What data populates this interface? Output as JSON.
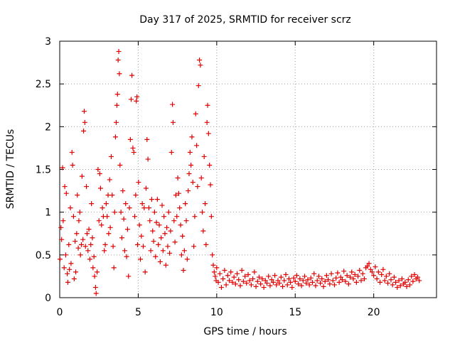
{
  "chart_data": {
    "type": "scatter",
    "title": "Day 317 of 2025, SRMTID for receiver scrz",
    "xlabel": "GPS time / hours",
    "ylabel": "SRMTID / TECUs",
    "xlim": [
      0,
      24
    ],
    "ylim": [
      0,
      3
    ],
    "x_ticks": [
      0,
      5,
      10,
      15,
      20
    ],
    "x_tick_labels": [
      "0",
      "5",
      "10",
      "15",
      "20"
    ],
    "y_ticks": [
      0,
      0.5,
      1,
      1.5,
      2,
      2.5,
      3
    ],
    "y_tick_labels": [
      "0",
      "0.5",
      "1",
      "1.5",
      "2",
      "2.5",
      "3"
    ],
    "grid": true,
    "marker": "+",
    "series": [
      {
        "name": "SRMTID",
        "color": "#e00000",
        "points": [
          [
            0.02,
            0.45
          ],
          [
            0.08,
            0.82
          ],
          [
            0.12,
            0.68
          ],
          [
            0.18,
            1.52
          ],
          [
            0.22,
            0.9
          ],
          [
            0.28,
            0.35
          ],
          [
            0.32,
            1.3
          ],
          [
            0.38,
            0.5
          ],
          [
            0.42,
            1.22
          ],
          [
            0.48,
            0.28
          ],
          [
            0.52,
            0.18
          ],
          [
            0.58,
            0.62
          ],
          [
            0.62,
            0.33
          ],
          [
            0.68,
            1.05
          ],
          [
            0.72,
            0.4
          ],
          [
            0.78,
            1.7
          ],
          [
            0.82,
            1.55
          ],
          [
            0.88,
            0.95
          ],
          [
            0.92,
            0.22
          ],
          [
            0.98,
            0.66
          ],
          [
            1.02,
            0.3
          ],
          [
            1.08,
            0.75
          ],
          [
            1.12,
            1.2
          ],
          [
            1.18,
            0.58
          ],
          [
            1.22,
            0.9
          ],
          [
            1.28,
            1.0
          ],
          [
            1.32,
            0.5
          ],
          [
            1.38,
            0.62
          ],
          [
            1.42,
            1.42
          ],
          [
            1.48,
            0.68
          ],
          [
            1.52,
            1.95
          ],
          [
            1.56,
            2.18
          ],
          [
            1.6,
            2.05
          ],
          [
            1.64,
            0.6
          ],
          [
            1.7,
            1.3
          ],
          [
            1.74,
            0.75
          ],
          [
            1.8,
            0.55
          ],
          [
            1.86,
            0.8
          ],
          [
            1.92,
            0.45
          ],
          [
            1.98,
            0.62
          ],
          [
            2.02,
            1.1
          ],
          [
            2.08,
            0.7
          ],
          [
            2.12,
            0.35
          ],
          [
            2.18,
            0.48
          ],
          [
            2.22,
            0.25
          ],
          [
            2.28,
            0.12
          ],
          [
            2.32,
            0.05
          ],
          [
            2.38,
            0.3
          ],
          [
            2.44,
            1.5
          ],
          [
            2.5,
            0.9
          ],
          [
            2.55,
            1.45
          ],
          [
            2.6,
            1.28
          ],
          [
            2.66,
            0.85
          ],
          [
            2.72,
            1.05
          ],
          [
            2.78,
            0.95
          ],
          [
            2.84,
            0.55
          ],
          [
            2.9,
            0.62
          ],
          [
            2.96,
            1.1
          ],
          [
            3.02,
            0.95
          ],
          [
            3.08,
            1.2
          ],
          [
            3.12,
            0.75
          ],
          [
            3.18,
            1.38
          ],
          [
            3.22,
            0.82
          ],
          [
            3.28,
            1.65
          ],
          [
            3.34,
            1.2
          ],
          [
            3.4,
            0.6
          ],
          [
            3.45,
            0.35
          ],
          [
            3.5,
            1.0
          ],
          [
            3.55,
            1.88
          ],
          [
            3.6,
            2.05
          ],
          [
            3.64,
            2.25
          ],
          [
            3.68,
            2.38
          ],
          [
            3.72,
            2.78
          ],
          [
            3.76,
            2.88
          ],
          [
            3.8,
            2.62
          ],
          [
            3.84,
            1.55
          ],
          [
            3.9,
            1.0
          ],
          [
            3.96,
            0.7
          ],
          [
            4.02,
            1.25
          ],
          [
            4.08,
            0.92
          ],
          [
            4.14,
            0.55
          ],
          [
            4.2,
            1.1
          ],
          [
            4.26,
            0.48
          ],
          [
            4.32,
            0.8
          ],
          [
            4.38,
            0.25
          ],
          [
            4.44,
            1.05
          ],
          [
            4.5,
            1.85
          ],
          [
            4.55,
            2.32
          ],
          [
            4.6,
            2.6
          ],
          [
            4.66,
            1.75
          ],
          [
            4.72,
            1.7
          ],
          [
            4.78,
            0.95
          ],
          [
            4.84,
            1.2
          ],
          [
            4.88,
            2.3
          ],
          [
            4.92,
            2.35
          ],
          [
            4.96,
            0.62
          ],
          [
            5.02,
            1.35
          ],
          [
            5.08,
            0.85
          ],
          [
            5.14,
            0.45
          ],
          [
            5.2,
            0.72
          ],
          [
            5.26,
            1.1
          ],
          [
            5.32,
            0.6
          ],
          [
            5.38,
            1.05
          ],
          [
            5.44,
            0.3
          ],
          [
            5.5,
            1.28
          ],
          [
            5.56,
            1.85
          ],
          [
            5.62,
            1.62
          ],
          [
            5.68,
            1.05
          ],
          [
            5.74,
            0.9
          ],
          [
            5.8,
            0.55
          ],
          [
            5.86,
            1.15
          ],
          [
            5.92,
            0.78
          ],
          [
            5.98,
            0.66
          ],
          [
            6.04,
            1.0
          ],
          [
            6.1,
            0.48
          ],
          [
            6.16,
            0.88
          ],
          [
            6.22,
            1.15
          ],
          [
            6.28,
            0.62
          ],
          [
            6.34,
            0.85
          ],
          [
            6.4,
            0.42
          ],
          [
            6.46,
            0.7
          ],
          [
            6.52,
            1.08
          ],
          [
            6.58,
            0.55
          ],
          [
            6.64,
            0.95
          ],
          [
            6.7,
            0.75
          ],
          [
            6.76,
            0.38
          ],
          [
            6.82,
            0.82
          ],
          [
            6.88,
            0.6
          ],
          [
            6.94,
            1.0
          ],
          [
            7.0,
            0.52
          ],
          [
            7.06,
            0.78
          ],
          [
            7.12,
            1.7
          ],
          [
            7.18,
            2.26
          ],
          [
            7.22,
            2.05
          ],
          [
            7.28,
            0.9
          ],
          [
            7.34,
            0.65
          ],
          [
            7.4,
            1.2
          ],
          [
            7.46,
            0.95
          ],
          [
            7.52,
            1.4
          ],
          [
            7.58,
            1.22
          ],
          [
            7.64,
            1.05
          ],
          [
            7.7,
            0.85
          ],
          [
            7.76,
            0.5
          ],
          [
            7.82,
            0.72
          ],
          [
            7.88,
            0.32
          ],
          [
            7.94,
            0.55
          ],
          [
            8.0,
            1.1
          ],
          [
            8.06,
            0.9
          ],
          [
            8.12,
            0.45
          ],
          [
            8.18,
            1.25
          ],
          [
            8.24,
            1.45
          ],
          [
            8.3,
            1.7
          ],
          [
            8.36,
            1.55
          ],
          [
            8.42,
            1.88
          ],
          [
            8.48,
            1.35
          ],
          [
            8.54,
            0.6
          ],
          [
            8.6,
            0.95
          ],
          [
            8.66,
            2.15
          ],
          [
            8.72,
            1.78
          ],
          [
            8.78,
            1.3
          ],
          [
            8.84,
            2.48
          ],
          [
            8.9,
            2.78
          ],
          [
            8.96,
            2.72
          ],
          [
            9.02,
            1.4
          ],
          [
            9.08,
            1.0
          ],
          [
            9.14,
            0.78
          ],
          [
            9.2,
            1.65
          ],
          [
            9.26,
            1.1
          ],
          [
            9.32,
            0.62
          ],
          [
            9.38,
            2.05
          ],
          [
            9.42,
            2.25
          ],
          [
            9.48,
            1.92
          ],
          [
            9.54,
            1.55
          ],
          [
            9.6,
            1.32
          ],
          [
            9.66,
            0.95
          ],
          [
            9.72,
            0.5
          ],
          [
            9.78,
            0.38
          ],
          [
            9.84,
            0.3
          ],
          [
            9.9,
            0.25
          ],
          [
            9.96,
            0.2
          ],
          [
            10.0,
            0.35
          ],
          [
            10.1,
            0.18
          ],
          [
            10.2,
            0.28
          ],
          [
            10.3,
            0.12
          ],
          [
            10.4,
            0.22
          ],
          [
            10.5,
            0.32
          ],
          [
            10.6,
            0.15
          ],
          [
            10.7,
            0.26
          ],
          [
            10.8,
            0.2
          ],
          [
            10.9,
            0.3
          ],
          [
            11.0,
            0.18
          ],
          [
            11.1,
            0.24
          ],
          [
            11.2,
            0.16
          ],
          [
            11.3,
            0.28
          ],
          [
            11.4,
            0.21
          ],
          [
            11.5,
            0.14
          ],
          [
            11.6,
            0.32
          ],
          [
            11.7,
            0.19
          ],
          [
            11.8,
            0.25
          ],
          [
            11.9,
            0.17
          ],
          [
            12.0,
            0.27
          ],
          [
            12.1,
            0.2
          ],
          [
            12.2,
            0.15
          ],
          [
            12.3,
            0.22
          ],
          [
            12.4,
            0.3
          ],
          [
            12.5,
            0.13
          ],
          [
            12.6,
            0.19
          ],
          [
            12.7,
            0.24
          ],
          [
            12.8,
            0.16
          ],
          [
            12.9,
            0.22
          ],
          [
            13.0,
            0.12
          ],
          [
            13.1,
            0.2
          ],
          [
            13.2,
            0.17
          ],
          [
            13.3,
            0.25
          ],
          [
            13.4,
            0.14
          ],
          [
            13.5,
            0.21
          ],
          [
            13.6,
            0.18
          ],
          [
            13.7,
            0.26
          ],
          [
            13.8,
            0.15
          ],
          [
            13.9,
            0.2
          ],
          [
            14.0,
            0.17
          ],
          [
            14.1,
            0.24
          ],
          [
            14.2,
            0.13
          ],
          [
            14.3,
            0.2
          ],
          [
            14.4,
            0.27
          ],
          [
            14.5,
            0.15
          ],
          [
            14.6,
            0.22
          ],
          [
            14.7,
            0.18
          ],
          [
            14.8,
            0.12
          ],
          [
            14.9,
            0.23
          ],
          [
            15.0,
            0.19
          ],
          [
            15.1,
            0.26
          ],
          [
            15.2,
            0.16
          ],
          [
            15.3,
            0.22
          ],
          [
            15.4,
            0.14
          ],
          [
            15.5,
            0.2
          ],
          [
            15.6,
            0.25
          ],
          [
            15.7,
            0.17
          ],
          [
            15.8,
            0.21
          ],
          [
            15.9,
            0.15
          ],
          [
            16.0,
            0.23
          ],
          [
            16.1,
            0.18
          ],
          [
            16.2,
            0.28
          ],
          [
            16.3,
            0.14
          ],
          [
            16.4,
            0.2
          ],
          [
            16.5,
            0.25
          ],
          [
            16.6,
            0.17
          ],
          [
            16.7,
            0.22
          ],
          [
            16.8,
            0.13
          ],
          [
            16.9,
            0.19
          ],
          [
            17.0,
            0.26
          ],
          [
            17.1,
            0.21
          ],
          [
            17.2,
            0.16
          ],
          [
            17.3,
            0.28
          ],
          [
            17.4,
            0.2
          ],
          [
            17.5,
            0.15
          ],
          [
            17.6,
            0.23
          ],
          [
            17.7,
            0.29
          ],
          [
            17.8,
            0.18
          ],
          [
            17.9,
            0.24
          ],
          [
            18.0,
            0.21
          ],
          [
            18.1,
            0.31
          ],
          [
            18.2,
            0.19
          ],
          [
            18.3,
            0.26
          ],
          [
            18.4,
            0.16
          ],
          [
            18.5,
            0.24
          ],
          [
            18.6,
            0.3
          ],
          [
            18.7,
            0.22
          ],
          [
            18.8,
            0.27
          ],
          [
            18.9,
            0.18
          ],
          [
            19.0,
            0.25
          ],
          [
            19.1,
            0.32
          ],
          [
            19.2,
            0.2
          ],
          [
            19.3,
            0.28
          ],
          [
            19.4,
            0.22
          ],
          [
            19.5,
            0.35
          ],
          [
            19.6,
            0.37
          ],
          [
            19.7,
            0.4
          ],
          [
            19.8,
            0.33
          ],
          [
            19.9,
            0.3
          ],
          [
            20.0,
            0.26
          ],
          [
            20.1,
            0.36
          ],
          [
            20.2,
            0.22
          ],
          [
            20.3,
            0.3
          ],
          [
            20.4,
            0.18
          ],
          [
            20.5,
            0.27
          ],
          [
            20.6,
            0.33
          ],
          [
            20.7,
            0.2
          ],
          [
            20.8,
            0.25
          ],
          [
            20.9,
            0.17
          ],
          [
            21.0,
            0.28
          ],
          [
            21.1,
            0.21
          ],
          [
            21.2,
            0.15
          ],
          [
            21.3,
            0.24
          ],
          [
            21.4,
            0.18
          ],
          [
            21.5,
            0.12
          ],
          [
            21.6,
            0.2
          ],
          [
            21.7,
            0.14
          ],
          [
            21.8,
            0.22
          ],
          [
            21.9,
            0.16
          ],
          [
            22.0,
            0.18
          ],
          [
            22.1,
            0.13
          ],
          [
            22.2,
            0.21
          ],
          [
            22.3,
            0.15
          ],
          [
            22.4,
            0.25
          ],
          [
            22.5,
            0.19
          ],
          [
            22.6,
            0.27
          ],
          [
            22.7,
            0.22
          ],
          [
            22.8,
            0.24
          ],
          [
            22.9,
            0.2
          ]
        ]
      }
    ]
  }
}
